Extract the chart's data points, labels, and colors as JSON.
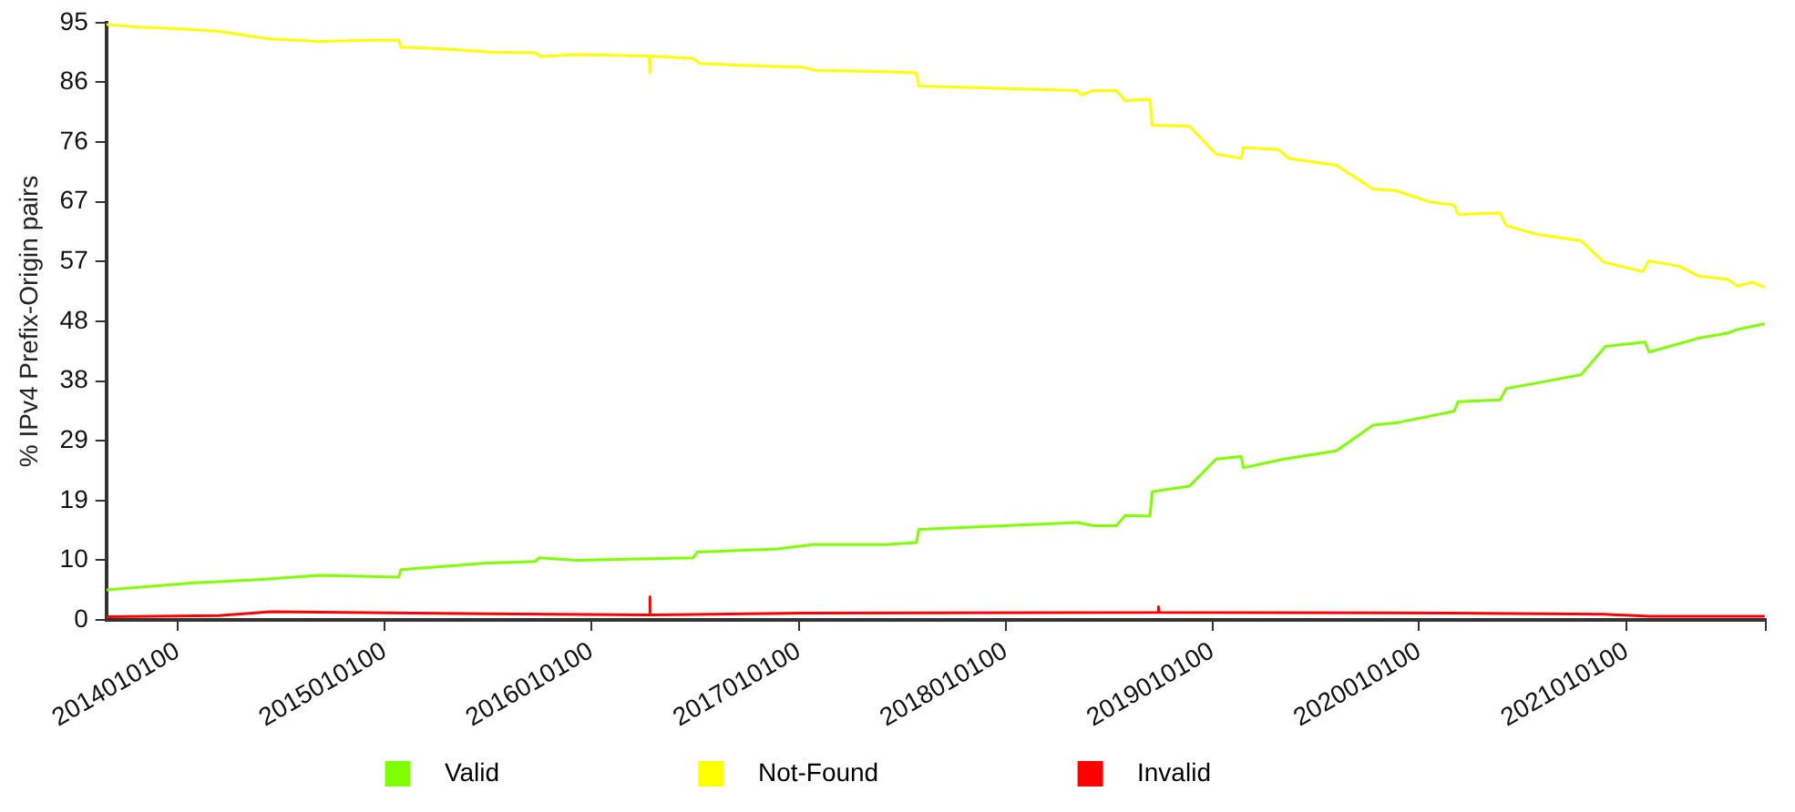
{
  "chart_data": {
    "type": "line",
    "ylabel": "% IPv4 Prefix-Origin pairs",
    "xlim": [
      "2013-08-28",
      "2021-09-04"
    ],
    "xticks": [
      {
        "value": "2014-01-01",
        "label": "2014010100"
      },
      {
        "value": "2015-01-01",
        "label": "2015010100"
      },
      {
        "value": "2016-01-01",
        "label": "2016010100"
      },
      {
        "value": "2017-01-01",
        "label": "2017010100"
      },
      {
        "value": "2018-01-01",
        "label": "2018010100"
      },
      {
        "value": "2019-01-01",
        "label": "2019010100"
      },
      {
        "value": "2020-01-01",
        "label": "2020010100"
      },
      {
        "value": "2021-01-01",
        "label": "2021010100"
      },
      {
        "value": "2021-09-04",
        "label": null
      }
    ],
    "ylim": [
      0,
      95
    ],
    "yticks": [
      0,
      {
        "value": 9.5,
        "label": "10"
      },
      19,
      {
        "value": 28.5,
        "label": "29"
      },
      38,
      {
        "value": 47.5,
        "label": "48"
      },
      57,
      {
        "value": 66.5,
        "label": "67"
      },
      76,
      {
        "value": 85.5,
        "label": "86"
      },
      95
    ],
    "legend": "bottom",
    "series": [
      {
        "name": "Valid",
        "color": "#7fff00",
        "x": [
          "2013-08-28",
          "2014-01-30",
          "2014-05-23",
          "2014-09-09",
          "2015-01-26",
          "2015-01-30",
          "2015-06-25",
          "2015-09-24",
          "2015-10-01",
          "2015-12-06",
          "2016-06-29",
          "2016-07-06",
          "2016-11-25",
          "2017-01-26",
          "2017-06-03",
          "2017-07-28",
          "2017-08-01",
          "2018-05-08",
          "2018-06-06",
          "2018-07-16",
          "2018-07-31",
          "2018-09-13",
          "2018-09-17",
          "2018-11-22",
          "2019-01-08",
          "2019-02-21",
          "2019-02-25",
          "2019-05-08",
          "2019-08-08",
          "2019-10-12",
          "2019-11-25",
          "2020-03-03",
          "2020-03-10",
          "2020-05-23",
          "2020-06-03",
          "2020-07-28",
          "2020-10-13",
          "2020-11-25",
          "2021-02-03",
          "2021-02-10",
          "2021-05-08",
          "2021-06-28",
          "2021-07-16",
          "2021-09-02"
        ],
        "values": [
          4.8,
          5.9,
          6.4,
          7.1,
          6.8,
          8.0,
          9.0,
          9.3,
          9.9,
          9.5,
          9.9,
          10.8,
          11.3,
          12.0,
          12.0,
          12.3,
          14.4,
          15.5,
          15.0,
          15.0,
          16.6,
          16.5,
          20.4,
          21.3,
          25.6,
          26.0,
          24.2,
          25.6,
          26.9,
          31.0,
          31.4,
          33.2,
          34.7,
          35.0,
          36.8,
          37.7,
          39.0,
          43.5,
          44.2,
          42.6,
          44.8,
          45.6,
          46.2,
          47.1
        ]
      },
      {
        "name": "Not-Found",
        "color": "#ffff00",
        "x": [
          "2013-08-28",
          "2013-10-23",
          "2014-01-08",
          "2014-03-15",
          "2014-05-12",
          "2014-06-14",
          "2014-09-09",
          "2014-12-06",
          "2015-01-26",
          "2015-01-30",
          "2015-04-17",
          "2015-07-06",
          "2015-09-24",
          "2015-10-05",
          "2015-12-06",
          "2016-04-12",
          "2016-04-13",
          "2016-04-14",
          "2016-06-29",
          "2016-07-10",
          "2016-10-23",
          "2017-01-08",
          "2017-01-30",
          "2017-06-03",
          "2017-07-28",
          "2017-08-01",
          "2018-05-08",
          "2018-05-15",
          "2018-06-06",
          "2018-07-16",
          "2018-07-31",
          "2018-09-13",
          "2018-09-17",
          "2018-11-22",
          "2019-01-08",
          "2019-02-21",
          "2019-02-25",
          "2019-04-28",
          "2019-05-16",
          "2019-08-08",
          "2019-10-12",
          "2019-11-21",
          "2020-01-19",
          "2020-03-03",
          "2020-03-10",
          "2020-05-23",
          "2020-06-03",
          "2020-07-28",
          "2020-10-13",
          "2020-11-22",
          "2021-01-30",
          "2021-02-10",
          "2021-04-06",
          "2021-05-08",
          "2021-06-28",
          "2021-07-16",
          "2021-08-11",
          "2021-09-02"
        ],
        "values": [
          94.7,
          94.3,
          94.0,
          93.6,
          92.8,
          92.4,
          92.0,
          92.2,
          92.2,
          91.1,
          90.8,
          90.3,
          90.2,
          89.6,
          89.9,
          89.7,
          87.0,
          89.7,
          89.3,
          88.5,
          88.1,
          87.9,
          87.4,
          87.2,
          87.0,
          84.9,
          84.2,
          83.5,
          84.2,
          84.2,
          82.6,
          82.8,
          78.7,
          78.5,
          74.1,
          73.4,
          75.1,
          74.8,
          73.4,
          72.3,
          68.5,
          68.3,
          66.5,
          66.0,
          64.5,
          64.7,
          62.7,
          61.3,
          60.3,
          56.9,
          55.4,
          57.1,
          56.2,
          54.7,
          54.2,
          53.1,
          53.7,
          52.9
        ]
      },
      {
        "name": "Invalid",
        "color": "#ff0000",
        "x": [
          "2013-08-28",
          "2014-03-15",
          "2014-06-14",
          "2015-06-25",
          "2016-04-12",
          "2016-04-13",
          "2016-04-14",
          "2017-01-08",
          "2018-09-27",
          "2018-09-28",
          "2018-09-29",
          "2020-03-03",
          "2020-11-22",
          "2021-02-10",
          "2021-09-02"
        ],
        "values": [
          0.5,
          0.7,
          1.3,
          1.0,
          0.8,
          3.7,
          0.8,
          1.1,
          1.2,
          2.1,
          1.2,
          1.1,
          0.9,
          0.6,
          0.6
        ]
      }
    ]
  }
}
